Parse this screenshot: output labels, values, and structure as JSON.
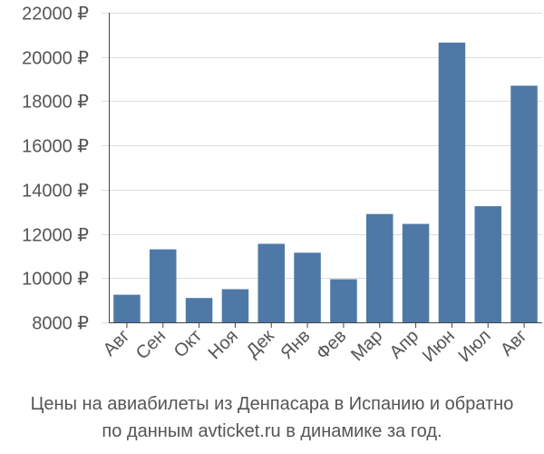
{
  "chart_data": {
    "type": "bar",
    "categories": [
      "Авг",
      "Сен",
      "Окт",
      "Ноя",
      "Дек",
      "Янв",
      "Фев",
      "Мар",
      "Апр",
      "Июн",
      "Июл",
      "Авг"
    ],
    "values": [
      9250,
      11300,
      9100,
      9500,
      11550,
      11150,
      9950,
      12900,
      12450,
      20650,
      13250,
      18700
    ],
    "ylim": [
      8000,
      22000
    ],
    "y_ticks": [
      8000,
      10000,
      12000,
      14000,
      16000,
      18000,
      20000,
      22000
    ],
    "y_tick_labels": [
      "8000 ₽",
      "10000 ₽",
      "12000 ₽",
      "14000 ₽",
      "16000 ₽",
      "18000 ₽",
      "20000 ₽",
      "22000 ₽"
    ],
    "grid": true,
    "legend": "none",
    "title": "",
    "xlabel": "",
    "ylabel": "",
    "bar_color": "#4e79a7",
    "grid_color": "#dddddd",
    "axis_color": "#444444"
  },
  "caption": {
    "line1": "Цены на авиабилеты из Денпасара в Испанию и обратно",
    "line2": "по данным avticket.ru в динамике за год."
  }
}
